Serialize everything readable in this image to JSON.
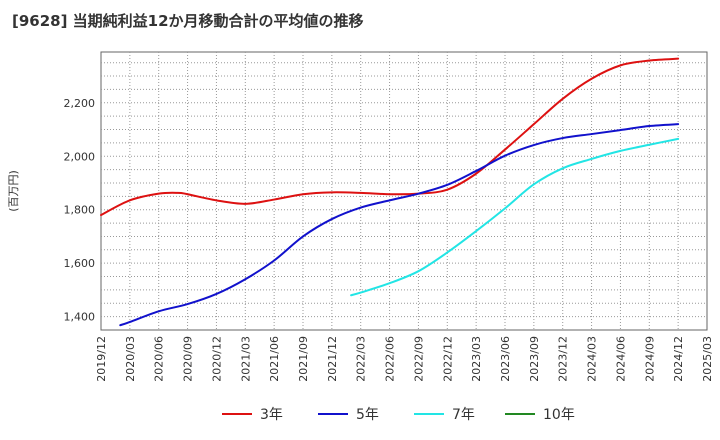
{
  "title": "[9628]  当期純利益12か月移動合計の平均値の推移",
  "chart_data": {
    "type": "line",
    "title": "[9628]  当期純利益12か月移動合計の平均値の推移",
    "ylabel": "(百万円)",
    "xlabel": "",
    "ylim": [
      1350,
      2390
    ],
    "yticks": [
      1400,
      1600,
      1800,
      2000,
      2200
    ],
    "ytick_labels": [
      "1,400",
      "1,600",
      "1,800",
      "2,000",
      "2,200"
    ],
    "xticks": [
      "2019/12",
      "2020/03",
      "2020/06",
      "2020/09",
      "2020/12",
      "2021/03",
      "2021/06",
      "2021/09",
      "2021/12",
      "2022/03",
      "2022/06",
      "2022/09",
      "2022/12",
      "2023/03",
      "2023/06",
      "2023/09",
      "2023/12",
      "2024/03",
      "2024/06",
      "2024/09",
      "2024/12",
      "2025/03"
    ],
    "grid": true,
    "legend_position": "bottom",
    "series": [
      {
        "name": "3年",
        "color": "#dd1111",
        "points": [
          [
            "2019/12",
            1780
          ],
          [
            "2020/03",
            1835
          ],
          [
            "2020/06",
            1860
          ],
          [
            "2020/08",
            1863
          ],
          [
            "2020/09",
            1858
          ],
          [
            "2020/12",
            1835
          ],
          [
            "2021/03",
            1822
          ],
          [
            "2021/06",
            1838
          ],
          [
            "2021/09",
            1858
          ],
          [
            "2021/12",
            1865
          ],
          [
            "2022/03",
            1863
          ],
          [
            "2022/06",
            1858
          ],
          [
            "2022/09",
            1860
          ],
          [
            "2022/12",
            1875
          ],
          [
            "2023/03",
            1935
          ],
          [
            "2023/06",
            2025
          ],
          [
            "2023/09",
            2120
          ],
          [
            "2023/12",
            2215
          ],
          [
            "2024/03",
            2290
          ],
          [
            "2024/06",
            2340
          ],
          [
            "2024/09",
            2358
          ],
          [
            "2024/12",
            2365
          ]
        ]
      },
      {
        "name": "5年",
        "color": "#1111cc",
        "points": [
          [
            "2020/02",
            1368
          ],
          [
            "2020/03",
            1380
          ],
          [
            "2020/06",
            1420
          ],
          [
            "2020/09",
            1447
          ],
          [
            "2020/12",
            1485
          ],
          [
            "2021/03",
            1540
          ],
          [
            "2021/06",
            1610
          ],
          [
            "2021/09",
            1700
          ],
          [
            "2021/12",
            1765
          ],
          [
            "2022/03",
            1808
          ],
          [
            "2022/06",
            1835
          ],
          [
            "2022/09",
            1860
          ],
          [
            "2022/12",
            1893
          ],
          [
            "2023/03",
            1945
          ],
          [
            "2023/06",
            2002
          ],
          [
            "2023/09",
            2042
          ],
          [
            "2023/12",
            2068
          ],
          [
            "2024/03",
            2083
          ],
          [
            "2024/06",
            2098
          ],
          [
            "2024/09",
            2113
          ],
          [
            "2024/12",
            2120
          ]
        ]
      },
      {
        "name": "7年",
        "color": "#22e5e5",
        "points": [
          [
            "2022/02",
            1480
          ],
          [
            "2022/03",
            1490
          ],
          [
            "2022/06",
            1525
          ],
          [
            "2022/09",
            1570
          ],
          [
            "2022/12",
            1640
          ],
          [
            "2023/03",
            1720
          ],
          [
            "2023/06",
            1805
          ],
          [
            "2023/09",
            1895
          ],
          [
            "2023/12",
            1955
          ],
          [
            "2024/03",
            1990
          ],
          [
            "2024/06",
            2020
          ],
          [
            "2024/09",
            2043
          ],
          [
            "2024/12",
            2065
          ]
        ]
      },
      {
        "name": "10年",
        "color": "#228822",
        "points": []
      }
    ]
  }
}
